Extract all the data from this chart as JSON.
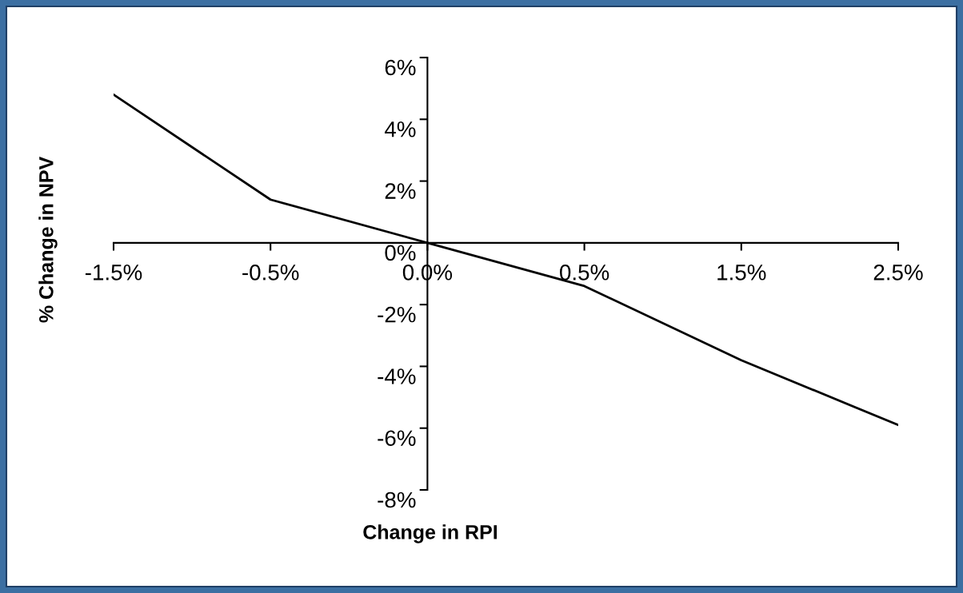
{
  "chart_data": {
    "type": "line",
    "xlabel": "Change in RPI",
    "ylabel": "% Change in NPV",
    "categories": [
      "-1.5%",
      "-0.5%",
      "0.0%",
      "0.5%",
      "1.5%",
      "2.5%"
    ],
    "series": [
      {
        "color": "#000000",
        "values": [
          4.8,
          1.4,
          0.0,
          -1.4,
          -3.8,
          -5.9
        ]
      }
    ],
    "ylim": [
      -8,
      6
    ],
    "yticks": [
      {
        "value": -8,
        "label": "-8%"
      },
      {
        "value": -6,
        "label": "-6%"
      },
      {
        "value": -4,
        "label": "-4%"
      },
      {
        "value": -2,
        "label": "-2%"
      },
      {
        "value": 0,
        "label": "0%"
      },
      {
        "value": 2,
        "label": "2%"
      },
      {
        "value": 4,
        "label": "4%"
      },
      {
        "value": 6,
        "label": "6%"
      }
    ],
    "grid": false,
    "legend": false,
    "marker": "none",
    "line_style": "solid"
  }
}
